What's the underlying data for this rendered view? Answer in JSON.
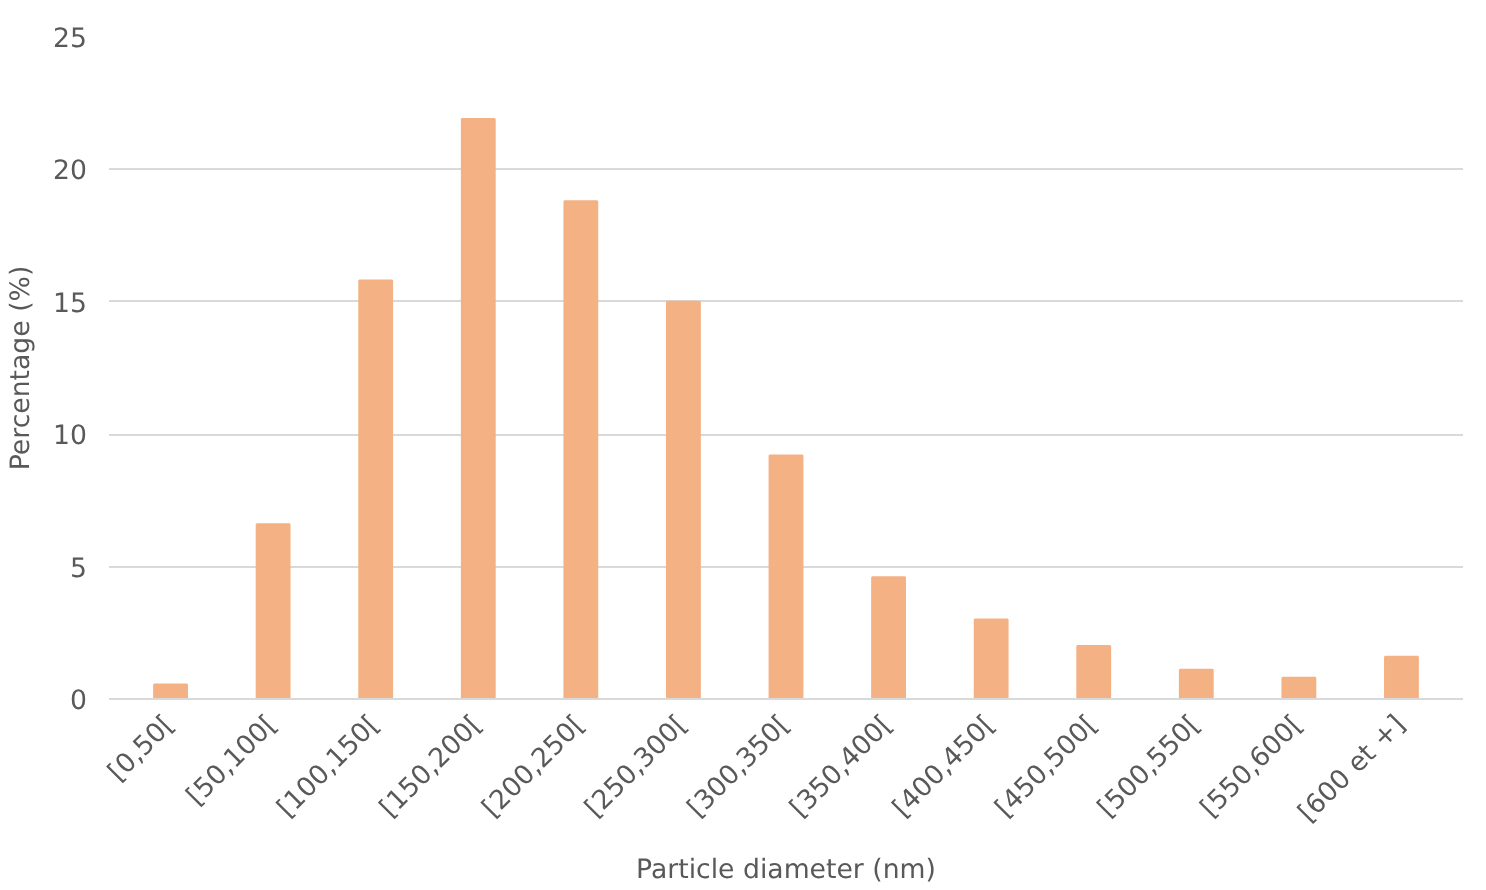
{
  "chart_data": {
    "type": "bar",
    "xlabel": "Particle diameter (nm)",
    "ylabel": "Percentage (%)",
    "categories": [
      "[0,50[",
      "[50,100[",
      "[100,150[",
      "[150,200[",
      "[200,250[",
      "[250,300[",
      "[300,350[",
      "[350,400[",
      "[400,450[",
      "[450,500[",
      "[500,550[",
      "[550,600[",
      "[600 et +]"
    ],
    "values": [
      0.55,
      6.6,
      15.8,
      21.9,
      18.8,
      15.0,
      9.2,
      4.6,
      3.0,
      2.0,
      1.1,
      0.8,
      1.6
    ],
    "color": "#f4b183",
    "ylim": [
      0,
      25
    ],
    "yticks": [
      0,
      5,
      10,
      15,
      20,
      25
    ],
    "grid": "y"
  }
}
